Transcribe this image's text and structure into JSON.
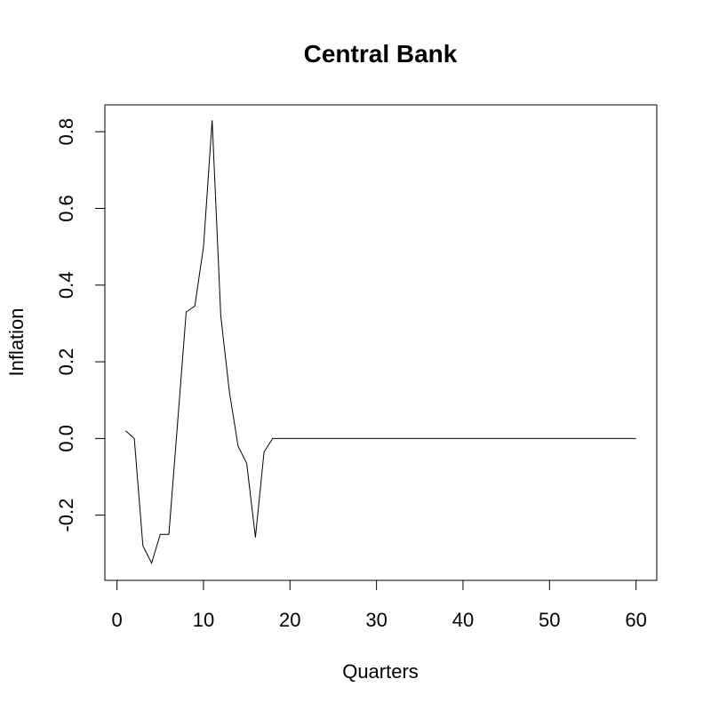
{
  "chart_data": {
    "type": "line",
    "title": "Central Bank",
    "xlabel": "Quarters",
    "ylabel": "Inflation",
    "xlim": [
      -1.4,
      62.4
    ],
    "ylim": [
      -0.37,
      0.87
    ],
    "xticks": [
      0,
      10,
      20,
      30,
      40,
      50,
      60
    ],
    "xtick_labels": [
      "0",
      "10",
      "20",
      "30",
      "40",
      "50",
      "60"
    ],
    "yticks": [
      -0.2,
      0.0,
      0.2,
      0.4,
      0.6,
      0.8
    ],
    "ytick_labels": [
      "-0.2",
      "0.0",
      "0.2",
      "0.4",
      "0.6",
      "0.8"
    ],
    "grid": false,
    "series": [
      {
        "color": "#000000",
        "x": [
          1,
          2,
          3,
          4,
          5,
          6,
          7,
          8,
          9,
          10,
          11,
          12,
          13,
          14,
          15,
          16,
          17,
          18,
          19,
          20,
          21,
          22,
          23,
          24,
          25,
          26,
          27,
          28,
          29,
          30,
          31,
          32,
          33,
          34,
          35,
          36,
          37,
          38,
          39,
          40,
          41,
          42,
          43,
          44,
          45,
          46,
          47,
          48,
          49,
          50,
          51,
          52,
          53,
          54,
          55,
          56,
          57,
          58,
          59,
          60
        ],
        "y": [
          0.02,
          0.0,
          -0.28,
          -0.325,
          -0.25,
          -0.25,
          0.04,
          0.33,
          0.345,
          0.5,
          0.83,
          0.32,
          0.12,
          -0.02,
          -0.065,
          -0.258,
          -0.035,
          0.0,
          0,
          0,
          0,
          0,
          0,
          0,
          0,
          0,
          0,
          0,
          0,
          0,
          0,
          0,
          0,
          0,
          0,
          0,
          0,
          0,
          0,
          0,
          0,
          0,
          0,
          0,
          0,
          0,
          0,
          0,
          0,
          0,
          0,
          0,
          0,
          0,
          0,
          0,
          0,
          0,
          0,
          0
        ]
      }
    ]
  }
}
